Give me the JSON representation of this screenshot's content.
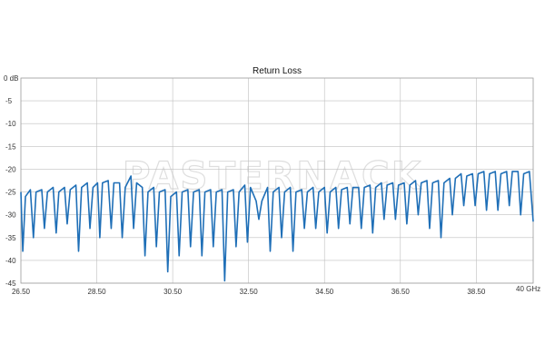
{
  "chart_data": {
    "type": "line",
    "title": "Return Loss",
    "watermark": "PASTERNACK",
    "xlabel": "",
    "ylabel": "",
    "x_unit_label": "40 GHz",
    "y_unit_label": "0 dB",
    "xlim": [
      26.5,
      40.0
    ],
    "ylim": [
      -45,
      0
    ],
    "x_ticks": [
      "26.50",
      "28.50",
      "30.50",
      "32.50",
      "34.50",
      "36.50",
      "38.50"
    ],
    "y_ticks": [
      "-5",
      "-10",
      "-15",
      "-20",
      "-25",
      "-30",
      "-35",
      "-40",
      "-45"
    ],
    "grid": true,
    "line_color": "#1f6fb7",
    "grid_color": "#bfbfbf",
    "series": [
      {
        "x": [
          26.5,
          26.55,
          26.62,
          26.75,
          26.83,
          26.9,
          27.05,
          27.12,
          27.2,
          27.35,
          27.43,
          27.5,
          27.65,
          27.72,
          27.8,
          27.95,
          28.02,
          28.1,
          28.25,
          28.32,
          28.4,
          28.52,
          28.58,
          28.65,
          28.8,
          28.88,
          28.95,
          29.1,
          29.17,
          29.25,
          29.4,
          29.47,
          29.55,
          29.7,
          29.77,
          29.85,
          30.0,
          30.07,
          30.15,
          30.3,
          30.37,
          30.45,
          30.6,
          30.67,
          30.75,
          30.9,
          30.97,
          31.05,
          31.2,
          31.27,
          31.35,
          31.5,
          31.57,
          31.65,
          31.8,
          31.87,
          31.95,
          32.1,
          32.17,
          32.25,
          32.4,
          32.47,
          32.55,
          32.7,
          32.77,
          32.85,
          33.0,
          33.07,
          33.15,
          33.3,
          33.37,
          33.45,
          33.6,
          33.67,
          33.75,
          33.9,
          33.97,
          34.05,
          34.2,
          34.27,
          34.35,
          34.5,
          34.57,
          34.65,
          34.8,
          34.87,
          34.95,
          35.1,
          35.17,
          35.25,
          35.4,
          35.47,
          35.55,
          35.7,
          35.77,
          35.85,
          36.0,
          36.07,
          36.15,
          36.3,
          36.37,
          36.45,
          36.6,
          36.67,
          36.75,
          36.9,
          36.97,
          37.05,
          37.2,
          37.27,
          37.35,
          37.5,
          37.57,
          37.65,
          37.8,
          37.87,
          37.95,
          38.1,
          38.17,
          38.25,
          38.4,
          38.47,
          38.55,
          38.7,
          38.77,
          38.85,
          39.0,
          39.07,
          39.15,
          39.3,
          39.37,
          39.45,
          39.6,
          39.67,
          39.75,
          39.9,
          40.0
        ],
        "y": [
          -25,
          -38,
          -26,
          -24.5,
          -35,
          -25,
          -24.5,
          -33,
          -25,
          -24,
          -34,
          -25,
          -24,
          -32,
          -24.5,
          -23.5,
          -38,
          -24,
          -23,
          -33,
          -24,
          -23,
          -35,
          -23,
          -22.5,
          -33,
          -23,
          -23,
          -35,
          -24,
          -21.5,
          -33,
          -23,
          -24,
          -39,
          -25,
          -24,
          -37,
          -25,
          -24.5,
          -42.5,
          -26,
          -25,
          -39,
          -25,
          -24.5,
          -37,
          -25,
          -24.5,
          -39,
          -25,
          -24.5,
          -37,
          -25,
          -24.5,
          -44.5,
          -25,
          -24.5,
          -37,
          -25,
          -23.5,
          -36,
          -24,
          -27,
          -31,
          -27,
          -24,
          -38,
          -25,
          -24,
          -35,
          -25,
          -24,
          -38,
          -25,
          -24.5,
          -33,
          -25,
          -24,
          -33,
          -25,
          -24,
          -34,
          -25,
          -24,
          -33,
          -24.5,
          -24,
          -32,
          -24,
          -24,
          -33,
          -24,
          -23.5,
          -34,
          -24,
          -23,
          -31,
          -23.5,
          -23,
          -31,
          -23.5,
          -23,
          -32,
          -23.5,
          -22.5,
          -30,
          -23,
          -22.5,
          -33,
          -23,
          -22.5,
          -35,
          -23,
          -22,
          -30,
          -22,
          -21,
          -28,
          -21.5,
          -21,
          -28,
          -21,
          -20.5,
          -29,
          -21,
          -20.5,
          -29,
          -21,
          -20.5,
          -28,
          -20.5,
          -20.5,
          -30,
          -21,
          -20.5,
          -31.5
        ]
      }
    ]
  }
}
